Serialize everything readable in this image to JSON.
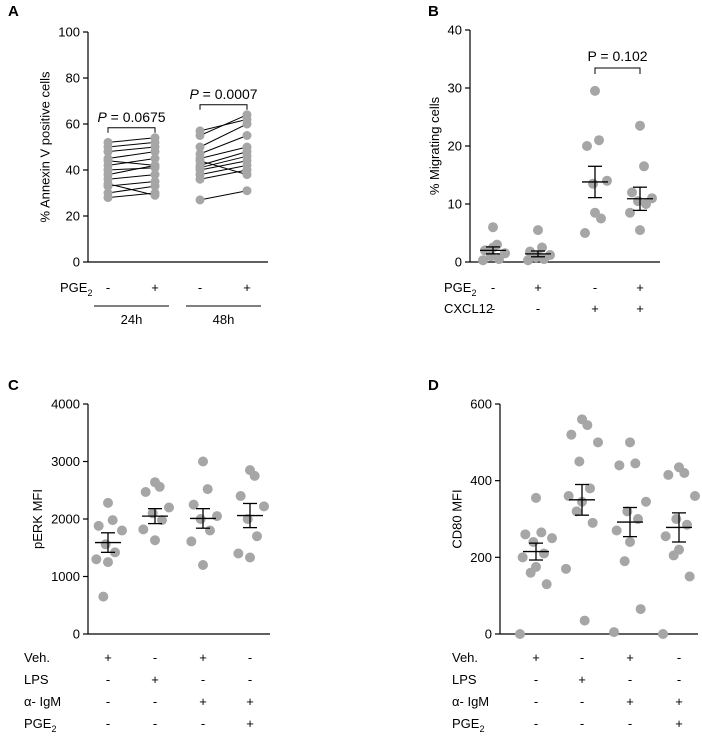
{
  "chart_data": [
    {
      "panel": "A",
      "type": "paired-scatter",
      "ylabel": "% Annexin V positive cells",
      "ylim": [
        0,
        100
      ],
      "yticks": [
        "0",
        "20",
        "40",
        "60",
        "80",
        "100"
      ],
      "condition_rows": [
        {
          "label": "PGE",
          "sub": "2",
          "values": [
            "-",
            "+",
            "-",
            "+"
          ]
        }
      ],
      "groups": [
        {
          "name": "24h",
          "p_prefix": "P",
          "p_value": " = 0.0675"
        },
        {
          "name": "48h",
          "p_prefix": "P",
          "p_value": " = 0.0007"
        }
      ],
      "pairs": [
        [
          [
            28,
            30
          ],
          [
            30,
            33
          ],
          [
            33,
            35
          ],
          [
            36,
            38
          ],
          [
            38,
            42
          ],
          [
            42,
            45
          ],
          [
            45,
            48
          ],
          [
            48,
            50
          ],
          [
            50,
            52
          ],
          [
            52,
            54
          ],
          [
            44,
            42
          ],
          [
            40,
            41
          ],
          [
            34,
            29
          ]
        ],
        [
          [
            27,
            31
          ],
          [
            36,
            40
          ],
          [
            40,
            44
          ],
          [
            42,
            48
          ],
          [
            45,
            50
          ],
          [
            47,
            55
          ],
          [
            50,
            60
          ],
          [
            55,
            64
          ],
          [
            57,
            62
          ],
          [
            44,
            38
          ],
          [
            41,
            46
          ],
          [
            38,
            42
          ]
        ]
      ]
    },
    {
      "panel": "B",
      "type": "scatter-mean-sem",
      "ylabel": "% Migrating cells",
      "ylim": [
        0,
        40
      ],
      "yticks": [
        "0",
        "10",
        "20",
        "30",
        "40"
      ],
      "condition_rows": [
        {
          "label": "PGE",
          "sub": "2",
          "values": [
            "-",
            "+",
            "-",
            "+"
          ]
        },
        {
          "label": "CXCL12",
          "sub": "",
          "values": [
            "-",
            "-",
            "+",
            "+"
          ]
        }
      ],
      "annotation": {
        "text": "P = 0.102",
        "from": 2,
        "to": 3
      },
      "series": [
        {
          "points": [
            6,
            3,
            2,
            1.5,
            1,
            0.5,
            0.3,
            2.5
          ],
          "mean": 2.0,
          "sem": 0.6
        },
        {
          "points": [
            5.5,
            2.5,
            1.8,
            1.2,
            0.8,
            0.5,
            0.3,
            1.0
          ],
          "mean": 1.4,
          "sem": 0.5
        },
        {
          "points": [
            29.5,
            21,
            20,
            14,
            13.5,
            7.5,
            5,
            8.5
          ],
          "mean": 13.8,
          "sem": 2.7
        },
        {
          "points": [
            23.5,
            16.5,
            12,
            11,
            10.5,
            10,
            8.5,
            5.5
          ],
          "mean": 10.9,
          "sem": 2.0
        }
      ]
    },
    {
      "panel": "C",
      "type": "scatter-mean-sem",
      "ylabel": "pERK MFI",
      "ylim": [
        0,
        4000
      ],
      "yticks": [
        "0",
        "1000",
        "2000",
        "3000",
        "4000"
      ],
      "condition_rows": [
        {
          "label": "Veh.",
          "sub": "",
          "values": [
            "+",
            "-",
            "+",
            "-"
          ]
        },
        {
          "label": "LPS",
          "sub": "",
          "values": [
            "-",
            "+",
            "-",
            "-"
          ]
        },
        {
          "label": "α- IgM",
          "sub": "",
          "values": [
            "-",
            "-",
            "+",
            "+"
          ]
        },
        {
          "label": "PGE",
          "sub": "2",
          "values": [
            "-",
            "-",
            "-",
            "+"
          ]
        }
      ],
      "series": [
        {
          "points": [
            2280,
            1980,
            1880,
            1800,
            1560,
            1420,
            1300,
            1250,
            650
          ],
          "mean": 1590,
          "sem": 170
        },
        {
          "points": [
            2640,
            2560,
            2470,
            2200,
            2100,
            1980,
            1820,
            1630
          ],
          "mean": 2050,
          "sem": 130
        },
        {
          "points": [
            3000,
            2520,
            2250,
            2050,
            2000,
            1800,
            1610,
            1200
          ],
          "mean": 2010,
          "sem": 170
        },
        {
          "points": [
            2850,
            2750,
            2400,
            2220,
            2000,
            1700,
            1400,
            1330
          ],
          "mean": 2060,
          "sem": 210
        }
      ]
    },
    {
      "panel": "D",
      "type": "scatter-mean-sem",
      "ylabel": "CD80 MFI",
      "ylim": [
        0,
        600
      ],
      "yticks": [
        "0",
        "200",
        "400",
        "600"
      ],
      "condition_rows": [
        {
          "label": "Veh.",
          "sub": "",
          "values": [
            "+",
            "-",
            "+",
            "-"
          ]
        },
        {
          "label": "LPS",
          "sub": "",
          "values": [
            "-",
            "+",
            "-",
            "-"
          ]
        },
        {
          "label": "α- IgM",
          "sub": "",
          "values": [
            "-",
            "-",
            "+",
            "+"
          ]
        },
        {
          "label": "PGE",
          "sub": "2",
          "values": [
            "-",
            "-",
            "-",
            "+"
          ]
        }
      ],
      "series": [
        {
          "points": [
            355,
            265,
            260,
            250,
            240,
            210,
            200,
            175,
            160,
            130,
            0
          ],
          "mean": 215,
          "sem": 22
        },
        {
          "points": [
            560,
            545,
            520,
            500,
            450,
            380,
            360,
            345,
            320,
            290,
            170,
            35
          ],
          "mean": 350,
          "sem": 40
        },
        {
          "points": [
            500,
            445,
            440,
            345,
            320,
            300,
            270,
            240,
            190,
            65,
            5
          ],
          "mean": 292,
          "sem": 38
        },
        {
          "points": [
            435,
            420,
            415,
            360,
            300,
            285,
            255,
            220,
            205,
            150,
            0
          ],
          "mean": 278,
          "sem": 38
        }
      ]
    }
  ]
}
